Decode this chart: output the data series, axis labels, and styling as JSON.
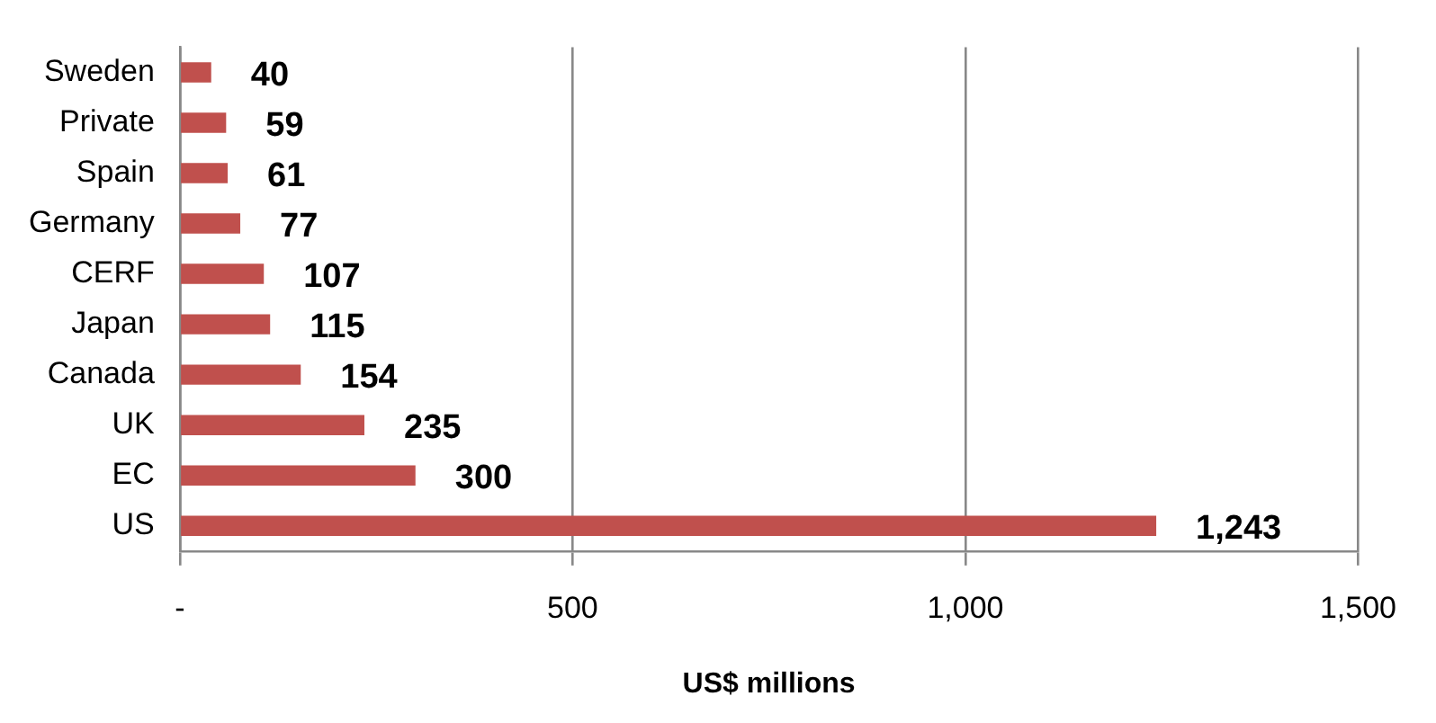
{
  "chart_data": {
    "type": "bar",
    "orientation": "horizontal",
    "xlabel": "US$ millions",
    "categories": [
      "Sweden",
      "Private",
      "Spain",
      "Germany",
      "CERF",
      "Japan",
      "Canada",
      "UK",
      "EC",
      "US"
    ],
    "values": [
      40,
      59,
      61,
      77,
      107,
      115,
      154,
      235,
      300,
      1243
    ],
    "value_labels": [
      "40",
      "59",
      "61",
      "77",
      "107",
      "115",
      "154",
      "235",
      "300",
      "1,243"
    ],
    "color": "#c0504d",
    "xlim": [
      0,
      1500
    ],
    "xticks": [
      {
        "value": 0,
        "label": "-"
      },
      500,
      {
        "value": 1000,
        "label": "1,000"
      },
      {
        "value": 1500,
        "label": "1,500"
      }
    ],
    "grid": "x",
    "legend": false
  }
}
